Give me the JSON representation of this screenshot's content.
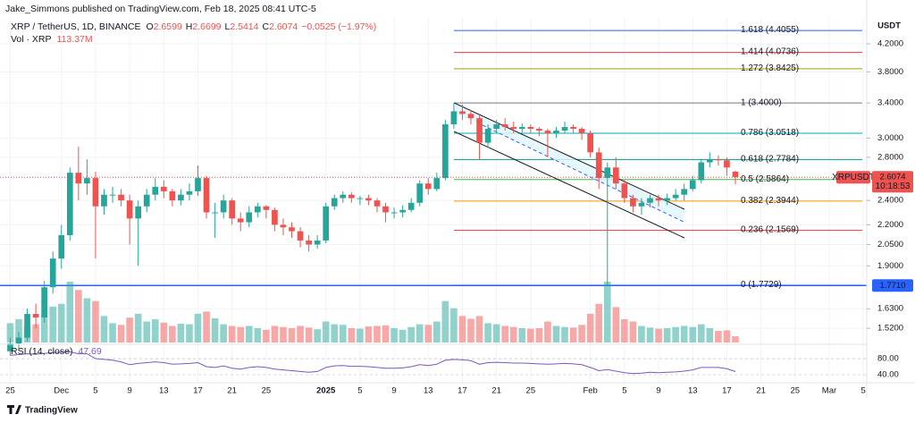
{
  "publisher": "Jake_Simmons published on TradingView.com, Feb 18, 2025 08:41 UTC-5",
  "branding": "TradingView",
  "chart_data": {
    "type": "candlestick",
    "title": "XRP / TetherUS, 1D, BINANCE",
    "ohlc_letters": [
      "O",
      "H",
      "L",
      "C"
    ],
    "change": {
      "value": -0.0525,
      "label": "−0.0525 (−1.97%)"
    },
    "y_unit": "USDT",
    "log_scale": true,
    "up_color": "#26a69a",
    "down_color": "#ef5350",
    "xlim": [
      -1.2,
      100.4
    ],
    "xticks": [
      {
        "value": 0,
        "label": "25"
      },
      {
        "value": 6,
        "label": "Dec"
      },
      {
        "value": 10,
        "label": "5"
      },
      {
        "value": 14,
        "label": "9"
      },
      {
        "value": 18,
        "label": "13"
      },
      {
        "value": 22,
        "label": "17"
      },
      {
        "value": 26,
        "label": "21"
      },
      {
        "value": 30,
        "label": "25"
      },
      {
        "value": 37,
        "label": "2025"
      },
      {
        "value": 41,
        "label": "5"
      },
      {
        "value": 45,
        "label": "9"
      },
      {
        "value": 49,
        "label": "13"
      },
      {
        "value": 53,
        "label": "17"
      },
      {
        "value": 57,
        "label": "21"
      },
      {
        "value": 61,
        "label": "25"
      },
      {
        "value": 68,
        "label": "Feb"
      },
      {
        "value": 72,
        "label": "5"
      },
      {
        "value": 76,
        "label": "9"
      },
      {
        "value": 80,
        "label": "13"
      },
      {
        "value": 84,
        "label": "17"
      },
      {
        "value": 88,
        "label": "21"
      },
      {
        "value": 92,
        "label": "25"
      },
      {
        "value": 96,
        "label": "Mar"
      },
      {
        "value": 100,
        "label": "5"
      }
    ],
    "ylim": [
      1.4355,
      4.608
    ],
    "yticks": [
      {
        "value": 4.2,
        "label": "4.2000"
      },
      {
        "value": 3.8,
        "label": "3.8000"
      },
      {
        "value": 3.4,
        "label": "3.4000"
      },
      {
        "value": 3.0,
        "label": "3.0000"
      },
      {
        "value": 2.8,
        "label": "2.8000"
      },
      {
        "value": 2.4,
        "label": "2.4000"
      },
      {
        "value": 2.2,
        "label": "2.2000"
      },
      {
        "value": 2.05,
        "label": "2.0500"
      },
      {
        "value": 1.9,
        "label": "1.9000"
      },
      {
        "value": 1.63,
        "label": "1.6300"
      },
      {
        "value": 1.52,
        "label": "1.5200"
      }
    ],
    "candles": [
      [
        1.4,
        1.47,
        1.38,
        1.44
      ],
      [
        1.44,
        1.5,
        1.4,
        1.47
      ],
      [
        1.47,
        1.63,
        1.45,
        1.6
      ],
      [
        1.6,
        1.66,
        1.52,
        1.58
      ],
      [
        1.58,
        1.8,
        1.55,
        1.76
      ],
      [
        1.76,
        2.0,
        1.72,
        1.95
      ],
      [
        1.95,
        2.2,
        1.88,
        2.12
      ],
      [
        2.12,
        2.7,
        2.08,
        2.65
      ],
      [
        2.65,
        2.91,
        2.4,
        2.55
      ],
      [
        2.55,
        2.78,
        2.45,
        2.6
      ],
      [
        2.6,
        2.66,
        1.95,
        2.35
      ],
      [
        2.35,
        2.5,
        2.28,
        2.45
      ],
      [
        2.45,
        2.52,
        2.38,
        2.45
      ],
      [
        2.45,
        2.5,
        2.35,
        2.4
      ],
      [
        2.4,
        2.45,
        2.05,
        2.25
      ],
      [
        2.25,
        2.4,
        1.9,
        2.35
      ],
      [
        2.35,
        2.5,
        2.3,
        2.45
      ],
      [
        2.45,
        2.6,
        2.4,
        2.52
      ],
      [
        2.52,
        2.58,
        2.42,
        2.48
      ],
      [
        2.48,
        2.5,
        2.35,
        2.4
      ],
      [
        2.4,
        2.5,
        2.36,
        2.45
      ],
      [
        2.45,
        2.55,
        2.4,
        2.48
      ],
      [
        2.48,
        2.72,
        2.44,
        2.6
      ],
      [
        2.6,
        2.62,
        2.25,
        2.3
      ],
      [
        2.3,
        2.38,
        2.1,
        2.3
      ],
      [
        2.3,
        2.45,
        2.25,
        2.4
      ],
      [
        2.4,
        2.42,
        2.2,
        2.25
      ],
      [
        2.25,
        2.3,
        2.15,
        2.22
      ],
      [
        2.22,
        2.35,
        2.18,
        2.3
      ],
      [
        2.3,
        2.38,
        2.26,
        2.35
      ],
      [
        2.35,
        2.36,
        2.25,
        2.32
      ],
      [
        2.32,
        2.34,
        2.15,
        2.2
      ],
      [
        2.2,
        2.25,
        2.12,
        2.18
      ],
      [
        2.18,
        2.22,
        2.1,
        2.15
      ],
      [
        2.15,
        2.18,
        2.03,
        2.08
      ],
      [
        2.08,
        2.12,
        2.0,
        2.05
      ],
      [
        2.05,
        2.12,
        2.02,
        2.08
      ],
      [
        2.08,
        2.38,
        2.06,
        2.35
      ],
      [
        2.35,
        2.45,
        2.32,
        2.42
      ],
      [
        2.42,
        2.48,
        2.38,
        2.45
      ],
      [
        2.45,
        2.47,
        2.38,
        2.42
      ],
      [
        2.42,
        2.44,
        2.36,
        2.42
      ],
      [
        2.42,
        2.45,
        2.36,
        2.4
      ],
      [
        2.4,
        2.42,
        2.3,
        2.35
      ],
      [
        2.35,
        2.38,
        2.22,
        2.3
      ],
      [
        2.3,
        2.34,
        2.25,
        2.3
      ],
      [
        2.3,
        2.36,
        2.26,
        2.32
      ],
      [
        2.32,
        2.42,
        2.3,
        2.38
      ],
      [
        2.38,
        2.58,
        2.35,
        2.55
      ],
      [
        2.55,
        2.6,
        2.45,
        2.5
      ],
      [
        2.5,
        2.65,
        2.48,
        2.6
      ],
      [
        2.6,
        3.2,
        2.58,
        3.15
      ],
      [
        3.15,
        3.4,
        3.1,
        3.3
      ],
      [
        3.3,
        3.38,
        3.2,
        3.27
      ],
      [
        3.27,
        3.32,
        3.15,
        3.22
      ],
      [
        3.22,
        3.25,
        2.78,
        2.95
      ],
      [
        2.95,
        3.15,
        2.9,
        3.1
      ],
      [
        3.1,
        3.2,
        3.05,
        3.15
      ],
      [
        3.15,
        3.22,
        3.08,
        3.12
      ],
      [
        3.12,
        3.18,
        3.05,
        3.1
      ],
      [
        3.1,
        3.16,
        3.06,
        3.12
      ],
      [
        3.12,
        3.15,
        3.05,
        3.1
      ],
      [
        3.1,
        3.12,
        3.02,
        3.08
      ],
      [
        3.08,
        3.1,
        2.8,
        3.05
      ],
      [
        3.05,
        3.12,
        3.0,
        3.08
      ],
      [
        3.08,
        3.18,
        3.05,
        3.12
      ],
      [
        3.12,
        3.15,
        3.05,
        3.1
      ],
      [
        3.1,
        3.12,
        2.98,
        3.05
      ],
      [
        3.05,
        3.08,
        2.8,
        2.85
      ],
      [
        2.85,
        2.9,
        2.5,
        2.6
      ],
      [
        2.6,
        2.75,
        1.77,
        2.7
      ],
      [
        2.7,
        2.8,
        2.5,
        2.55
      ],
      [
        2.55,
        2.58,
        2.38,
        2.42
      ],
      [
        2.42,
        2.45,
        2.3,
        2.35
      ],
      [
        2.35,
        2.42,
        2.28,
        2.38
      ],
      [
        2.38,
        2.45,
        2.34,
        2.42
      ],
      [
        2.42,
        2.45,
        2.35,
        2.4
      ],
      [
        2.4,
        2.46,
        2.36,
        2.42
      ],
      [
        2.42,
        2.5,
        2.4,
        2.45
      ],
      [
        2.45,
        2.55,
        2.4,
        2.5
      ],
      [
        2.5,
        2.62,
        2.48,
        2.58
      ],
      [
        2.58,
        2.78,
        2.55,
        2.75
      ],
      [
        2.75,
        2.85,
        2.7,
        2.78
      ],
      [
        2.78,
        2.82,
        2.72,
        2.77
      ],
      [
        2.77,
        2.8,
        2.62,
        2.7
      ],
      [
        2.6599,
        2.6699,
        2.5414,
        2.6074
      ]
    ],
    "volume": {
      "name": "Vol · XRP",
      "last_label": "113.37M",
      "values": [
        350,
        420,
        300,
        330,
        500,
        650,
        700,
        1100,
        950,
        800,
        750,
        480,
        350,
        320,
        450,
        520,
        380,
        420,
        360,
        300,
        340,
        330,
        520,
        560,
        440,
        330,
        300,
        280,
        300,
        260,
        230,
        300,
        280,
        260,
        300,
        270,
        240,
        380,
        330,
        320,
        260,
        250,
        290,
        300,
        310,
        260,
        230,
        280,
        330,
        320,
        380,
        750,
        620,
        480,
        430,
        480,
        350,
        330,
        300,
        280,
        260,
        250,
        260,
        380,
        300,
        280,
        270,
        320,
        520,
        700,
        1100,
        640,
        420,
        380,
        300,
        270,
        250,
        260,
        280,
        300,
        280,
        330,
        260,
        210,
        220,
        113.37
      ]
    },
    "rsi": {
      "name": "RSI (14, close)",
      "color": "#7e57c2",
      "ylim": [
        20,
        115.6
      ],
      "yticks": [
        {
          "value": 80,
          "label": "80.00"
        },
        {
          "value": 40,
          "label": "40.00"
        }
      ],
      "values": [
        88,
        90,
        92,
        91,
        93,
        95,
        96,
        97,
        92,
        92,
        80,
        78,
        76,
        72,
        65,
        68,
        70,
        72,
        70,
        66,
        67,
        68,
        70,
        60,
        58,
        62,
        56,
        54,
        58,
        60,
        58,
        54,
        52,
        50,
        48,
        46,
        48,
        58,
        62,
        63,
        61,
        61,
        60,
        58,
        56,
        56,
        57,
        60,
        65,
        63,
        66,
        76,
        78,
        77,
        75,
        66,
        70,
        71,
        70,
        69,
        69,
        68,
        67,
        66,
        67,
        68,
        67,
        65,
        58,
        50,
        53,
        49,
        45,
        43,
        44,
        46,
        45,
        46,
        47,
        49,
        52,
        58,
        58,
        58,
        55,
        47.69
      ]
    },
    "fib_levels": [
      {
        "value": 4.4055,
        "label": "1.618 (4.4055)",
        "color": "#2962ff"
      },
      {
        "value": 4.0736,
        "label": "1.414 (4.0736)",
        "color": "#f23645"
      },
      {
        "value": 3.8425,
        "label": "1.272 (3.8425)",
        "color": "#b59a00"
      },
      {
        "value": 3.4,
        "label": "1 (3.4000)",
        "color": "#787b86"
      },
      {
        "value": 3.0518,
        "label": "0.786 (3.0518)",
        "color": "#00acc1"
      },
      {
        "value": 2.7784,
        "label": "0.618 (2.7784)",
        "color": "#089981"
      },
      {
        "value": 2.5864,
        "label": "0.5 (2.5864)",
        "color": "#4caf50"
      },
      {
        "value": 2.3944,
        "label": "0.382 (2.3944)",
        "color": "#ff9800"
      },
      {
        "value": 2.1569,
        "label": "0.236 (2.1569)",
        "color": "#f23645"
      },
      {
        "value": 1.7729,
        "label": "0 (1.7729)",
        "color": "#787b86"
      }
    ],
    "hline": {
      "value": 1.771,
      "label": "1.7710",
      "color": "#2962ff"
    },
    "price_tag": {
      "symbol": "XRPUSDT",
      "countdown": "10:18:53"
    }
  }
}
